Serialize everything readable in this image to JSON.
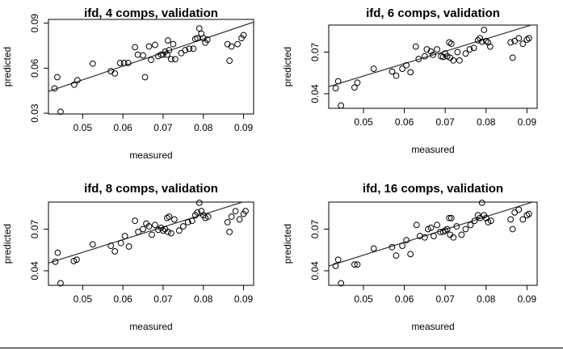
{
  "chart_data": [
    {
      "type": "scatter",
      "title": "ifd, 4 comps, validation",
      "xlabel": "measured",
      "ylabel": "predicted",
      "xlim": [
        0.0415,
        0.0925
      ],
      "ylim": [
        0.0295,
        0.0925
      ],
      "xticks": [
        0.05,
        0.06,
        0.07,
        0.08,
        0.09
      ],
      "xtick_labels": [
        "0.05",
        "0.06",
        "0.07",
        "0.08",
        "0.09"
      ],
      "yticks": [
        0.03,
        0.06,
        0.09
      ],
      "ytick_labels": [
        "0.03",
        "0.06",
        "0.09"
      ],
      "fit_line": {
        "intercept": 0.007,
        "slope": 0.905
      },
      "points": [
        [
          0.043,
          0.0465
        ],
        [
          0.0437,
          0.054
        ],
        [
          0.0445,
          0.031
        ],
        [
          0.0479,
          0.049
        ],
        [
          0.0487,
          0.052
        ],
        [
          0.0525,
          0.063
        ],
        [
          0.057,
          0.058
        ],
        [
          0.058,
          0.0565
        ],
        [
          0.0593,
          0.0635
        ],
        [
          0.0603,
          0.0635
        ],
        [
          0.0613,
          0.0635
        ],
        [
          0.063,
          0.074
        ],
        [
          0.0637,
          0.069
        ],
        [
          0.065,
          0.0685
        ],
        [
          0.0655,
          0.054
        ],
        [
          0.0665,
          0.0745
        ],
        [
          0.067,
          0.0655
        ],
        [
          0.068,
          0.0755
        ],
        [
          0.0688,
          0.068
        ],
        [
          0.0695,
          0.069
        ],
        [
          0.07,
          0.069
        ],
        [
          0.0705,
          0.071
        ],
        [
          0.071,
          0.069
        ],
        [
          0.0712,
          0.0785
        ],
        [
          0.0715,
          0.072
        ],
        [
          0.072,
          0.066
        ],
        [
          0.0725,
          0.076
        ],
        [
          0.073,
          0.066
        ],
        [
          0.0745,
          0.07
        ],
        [
          0.0755,
          0.072
        ],
        [
          0.0765,
          0.073
        ],
        [
          0.0775,
          0.073
        ],
        [
          0.078,
          0.0795
        ],
        [
          0.0785,
          0.08
        ],
        [
          0.079,
          0.0865
        ],
        [
          0.0795,
          0.083
        ],
        [
          0.08,
          0.08
        ],
        [
          0.0805,
          0.077
        ],
        [
          0.081,
          0.079
        ],
        [
          0.086,
          0.076
        ],
        [
          0.0865,
          0.065
        ],
        [
          0.087,
          0.0745
        ],
        [
          0.0885,
          0.076
        ],
        [
          0.0895,
          0.08
        ],
        [
          0.09,
          0.082
        ]
      ]
    },
    {
      "type": "scatter",
      "title": "ifd, 6 comps, validation",
      "xlabel": "measured",
      "ylabel": "predicted",
      "xlim": [
        0.0415,
        0.0925
      ],
      "ylim": [
        0.0295,
        0.0895
      ],
      "xticks": [
        0.05,
        0.06,
        0.07,
        0.08,
        0.09
      ],
      "xtick_labels": [
        "0.05",
        "0.06",
        "0.07",
        "0.08",
        "0.09"
      ],
      "yticks": [
        0.04,
        0.07
      ],
      "ytick_labels": [
        "0.04",
        "0.07"
      ],
      "fit_line": {
        "intercept": 0.008,
        "slope": 0.895
      },
      "points": [
        [
          0.0432,
          0.044
        ],
        [
          0.0438,
          0.049
        ],
        [
          0.0445,
          0.0315
        ],
        [
          0.0478,
          0.0445
        ],
        [
          0.0485,
          0.048
        ],
        [
          0.0525,
          0.058
        ],
        [
          0.057,
          0.056
        ],
        [
          0.058,
          0.053
        ],
        [
          0.0595,
          0.058
        ],
        [
          0.0605,
          0.0605
        ],
        [
          0.0615,
          0.0555
        ],
        [
          0.0628,
          0.074
        ],
        [
          0.0635,
          0.065
        ],
        [
          0.065,
          0.067
        ],
        [
          0.0655,
          0.072
        ],
        [
          0.0665,
          0.0705
        ],
        [
          0.067,
          0.068
        ],
        [
          0.068,
          0.072
        ],
        [
          0.069,
          0.067
        ],
        [
          0.0695,
          0.0665
        ],
        [
          0.07,
          0.069
        ],
        [
          0.0705,
          0.067
        ],
        [
          0.071,
          0.077
        ],
        [
          0.0712,
          0.066
        ],
        [
          0.0715,
          0.076
        ],
        [
          0.072,
          0.064
        ],
        [
          0.073,
          0.07
        ],
        [
          0.0735,
          0.064
        ],
        [
          0.075,
          0.069
        ],
        [
          0.076,
          0.072
        ],
        [
          0.077,
          0.073
        ],
        [
          0.078,
          0.0785
        ],
        [
          0.0785,
          0.08
        ],
        [
          0.079,
          0.0775
        ],
        [
          0.0795,
          0.086
        ],
        [
          0.08,
          0.078
        ],
        [
          0.0805,
          0.077
        ],
        [
          0.081,
          0.074
        ],
        [
          0.086,
          0.077
        ],
        [
          0.0865,
          0.066
        ],
        [
          0.087,
          0.078
        ],
        [
          0.088,
          0.08
        ],
        [
          0.089,
          0.076
        ],
        [
          0.09,
          0.079
        ],
        [
          0.0905,
          0.08
        ]
      ]
    },
    {
      "type": "scatter",
      "title": "ifd, 8 comps, validation",
      "xlabel": "measured",
      "ylabel": "predicted",
      "xlim": [
        0.0415,
        0.0925
      ],
      "ylim": [
        0.0295,
        0.0895
      ],
      "xticks": [
        0.05,
        0.06,
        0.07,
        0.08,
        0.09
      ],
      "xtick_labels": [
        "0.05",
        "0.06",
        "0.07",
        "0.08",
        "0.09"
      ],
      "yticks": [
        0.04,
        0.07
      ],
      "ytick_labels": [
        "0.04",
        "0.07"
      ],
      "fit_line": {
        "intercept": 0.0078,
        "slope": 0.91
      },
      "points": [
        [
          0.0432,
          0.0465
        ],
        [
          0.0438,
          0.053
        ],
        [
          0.0445,
          0.031
        ],
        [
          0.0478,
          0.047
        ],
        [
          0.0485,
          0.048
        ],
        [
          0.0525,
          0.059
        ],
        [
          0.057,
          0.058
        ],
        [
          0.058,
          0.054
        ],
        [
          0.0595,
          0.06
        ],
        [
          0.0605,
          0.065
        ],
        [
          0.0615,
          0.0575
        ],
        [
          0.063,
          0.076
        ],
        [
          0.0638,
          0.068
        ],
        [
          0.065,
          0.07
        ],
        [
          0.0658,
          0.074
        ],
        [
          0.0665,
          0.072
        ],
        [
          0.0672,
          0.066
        ],
        [
          0.068,
          0.073
        ],
        [
          0.0688,
          0.0695
        ],
        [
          0.0695,
          0.071
        ],
        [
          0.07,
          0.069
        ],
        [
          0.0705,
          0.07
        ],
        [
          0.071,
          0.078
        ],
        [
          0.0712,
          0.068
        ],
        [
          0.0715,
          0.079
        ],
        [
          0.072,
          0.067
        ],
        [
          0.0728,
          0.077
        ],
        [
          0.074,
          0.069
        ],
        [
          0.075,
          0.072
        ],
        [
          0.0762,
          0.075
        ],
        [
          0.0772,
          0.076
        ],
        [
          0.078,
          0.08
        ],
        [
          0.0785,
          0.082
        ],
        [
          0.079,
          0.089
        ],
        [
          0.0795,
          0.083
        ],
        [
          0.08,
          0.08
        ],
        [
          0.0805,
          0.078
        ],
        [
          0.0812,
          0.079
        ],
        [
          0.086,
          0.075
        ],
        [
          0.0865,
          0.068
        ],
        [
          0.087,
          0.079
        ],
        [
          0.088,
          0.083
        ],
        [
          0.089,
          0.077
        ],
        [
          0.09,
          0.081
        ],
        [
          0.0905,
          0.083
        ]
      ]
    },
    {
      "type": "scatter",
      "title": "ifd, 16 comps, validation",
      "xlabel": "measured",
      "ylabel": "predicted",
      "xlim": [
        0.0415,
        0.0925
      ],
      "ylim": [
        0.0295,
        0.0895
      ],
      "xticks": [
        0.05,
        0.06,
        0.07,
        0.08,
        0.09
      ],
      "xtick_labels": [
        "0.05",
        "0.06",
        "0.07",
        "0.08",
        "0.09"
      ],
      "yticks": [
        0.04,
        0.07
      ],
      "ytick_labels": [
        "0.04",
        "0.07"
      ],
      "fit_line": {
        "intercept": 0.005,
        "slope": 0.925
      },
      "points": [
        [
          0.0432,
          0.0435
        ],
        [
          0.0438,
          0.048
        ],
        [
          0.0445,
          0.031
        ],
        [
          0.0478,
          0.0445
        ],
        [
          0.0485,
          0.0445
        ],
        [
          0.0525,
          0.056
        ],
        [
          0.057,
          0.057
        ],
        [
          0.058,
          0.051
        ],
        [
          0.0595,
          0.058
        ],
        [
          0.0605,
          0.062
        ],
        [
          0.0615,
          0.052
        ],
        [
          0.063,
          0.073
        ],
        [
          0.0638,
          0.065
        ],
        [
          0.065,
          0.064
        ],
        [
          0.0658,
          0.07
        ],
        [
          0.0665,
          0.071
        ],
        [
          0.0672,
          0.065
        ],
        [
          0.068,
          0.073
        ],
        [
          0.0688,
          0.068
        ],
        [
          0.0695,
          0.068
        ],
        [
          0.07,
          0.069
        ],
        [
          0.0705,
          0.07
        ],
        [
          0.071,
          0.078
        ],
        [
          0.0712,
          0.066
        ],
        [
          0.0715,
          0.078
        ],
        [
          0.072,
          0.064
        ],
        [
          0.0728,
          0.072
        ],
        [
          0.074,
          0.066
        ],
        [
          0.075,
          0.07
        ],
        [
          0.0762,
          0.073
        ],
        [
          0.0772,
          0.076
        ],
        [
          0.078,
          0.08
        ],
        [
          0.0785,
          0.078
        ],
        [
          0.079,
          0.089
        ],
        [
          0.0795,
          0.08
        ],
        [
          0.08,
          0.078
        ],
        [
          0.0805,
          0.075
        ],
        [
          0.0812,
          0.076
        ],
        [
          0.086,
          0.077
        ],
        [
          0.0865,
          0.07
        ],
        [
          0.087,
          0.082
        ],
        [
          0.088,
          0.084
        ],
        [
          0.089,
          0.077
        ],
        [
          0.09,
          0.08
        ],
        [
          0.0905,
          0.081
        ]
      ]
    }
  ]
}
